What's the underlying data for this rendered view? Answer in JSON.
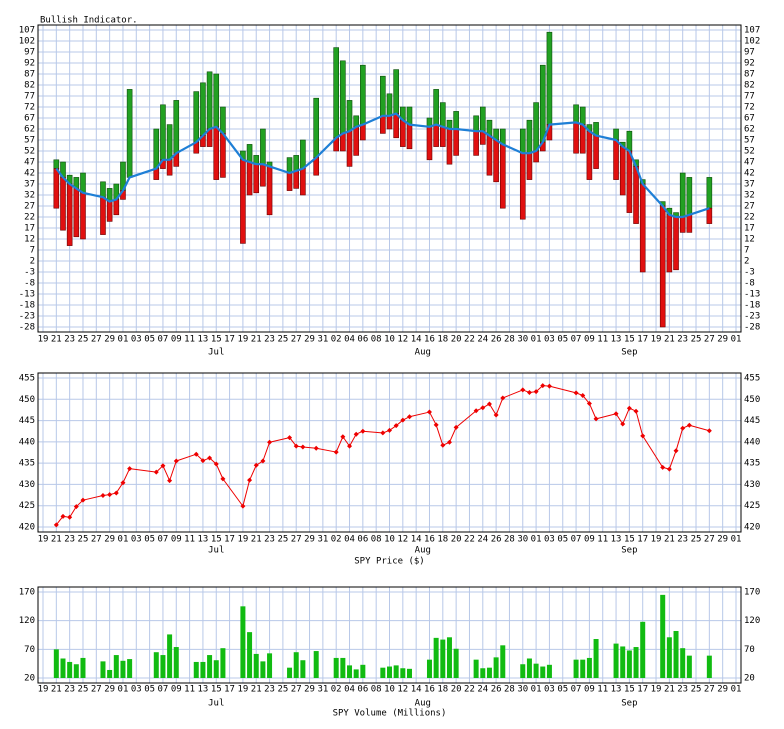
{
  "x_axis": {
    "x": [
      "06-21",
      "06-22",
      "06-23",
      "06-24",
      "06-25",
      "06-28",
      "06-29",
      "06-30",
      "07-01",
      "07-02",
      "07-06",
      "07-07",
      "07-08",
      "07-09",
      "07-12",
      "07-13",
      "07-14",
      "07-15",
      "07-16",
      "07-19",
      "07-20",
      "07-21",
      "07-22",
      "07-23",
      "07-26",
      "07-27",
      "07-28",
      "07-30",
      "08-02",
      "08-03",
      "08-04",
      "08-05",
      "08-06",
      "08-09",
      "08-10",
      "08-11",
      "08-12",
      "08-13",
      "08-16",
      "08-17",
      "08-18",
      "08-19",
      "08-20",
      "08-23",
      "08-24",
      "08-25",
      "08-26",
      "08-27",
      "08-30",
      "08-31",
      "09-01",
      "09-02",
      "09-03",
      "09-07",
      "09-08",
      "09-09",
      "09-10",
      "09-13",
      "09-14",
      "09-15",
      "09-16",
      "09-17",
      "09-20",
      "09-21",
      "09-22",
      "09-23",
      "09-24",
      "09-27"
    ],
    "xlim": [
      "06-19",
      "10-01"
    ],
    "xticks": [
      {
        "value": "06-19",
        "label": "19"
      },
      {
        "value": "06-21",
        "label": "21"
      },
      {
        "value": "06-23",
        "label": "23"
      },
      {
        "value": "06-25",
        "label": "25"
      },
      {
        "value": "06-27",
        "label": "27"
      },
      {
        "value": "06-29",
        "label": "29"
      },
      {
        "value": "07-01",
        "label": "01"
      },
      {
        "value": "07-03",
        "label": "03"
      },
      {
        "value": "07-05",
        "label": "05"
      },
      {
        "value": "07-07",
        "label": "07"
      },
      {
        "value": "07-09",
        "label": "09"
      },
      {
        "value": "07-11",
        "label": "11"
      },
      {
        "value": "07-13",
        "label": "13"
      },
      {
        "value": "07-15",
        "label": "15"
      },
      {
        "value": "07-17",
        "label": "17"
      },
      {
        "value": "07-19",
        "label": "19"
      },
      {
        "value": "07-21",
        "label": "21"
      },
      {
        "value": "07-23",
        "label": "23"
      },
      {
        "value": "07-25",
        "label": "25"
      },
      {
        "value": "07-27",
        "label": "27"
      },
      {
        "value": "07-29",
        "label": "29"
      },
      {
        "value": "07-31",
        "label": "31"
      },
      {
        "value": "08-02",
        "label": "02"
      },
      {
        "value": "08-04",
        "label": "04"
      },
      {
        "value": "08-06",
        "label": "06"
      },
      {
        "value": "08-08",
        "label": "08"
      },
      {
        "value": "08-10",
        "label": "10"
      },
      {
        "value": "08-12",
        "label": "12"
      },
      {
        "value": "08-14",
        "label": "14"
      },
      {
        "value": "08-16",
        "label": "16"
      },
      {
        "value": "08-18",
        "label": "18"
      },
      {
        "value": "08-20",
        "label": "20"
      },
      {
        "value": "08-22",
        "label": "22"
      },
      {
        "value": "08-24",
        "label": "24"
      },
      {
        "value": "08-26",
        "label": "26"
      },
      {
        "value": "08-28",
        "label": "28"
      },
      {
        "value": "08-30",
        "label": "30"
      },
      {
        "value": "09-01",
        "label": "01"
      },
      {
        "value": "09-03",
        "label": "03"
      },
      {
        "value": "09-05",
        "label": "05"
      },
      {
        "value": "09-07",
        "label": "07"
      },
      {
        "value": "09-09",
        "label": "09"
      },
      {
        "value": "09-11",
        "label": "11"
      },
      {
        "value": "09-13",
        "label": "13"
      },
      {
        "value": "09-15",
        "label": "15"
      },
      {
        "value": "09-17",
        "label": "17"
      },
      {
        "value": "09-19",
        "label": "19"
      },
      {
        "value": "09-21",
        "label": "21"
      },
      {
        "value": "09-23",
        "label": "23"
      },
      {
        "value": "09-25",
        "label": "25"
      },
      {
        "value": "09-27",
        "label": "27"
      },
      {
        "value": "09-29",
        "label": "29"
      },
      {
        "value": "10-01",
        "label": "01"
      }
    ],
    "month_labels": [
      {
        "value": "07-15",
        "label": "Jul"
      },
      {
        "value": "08-15",
        "label": "Aug"
      },
      {
        "value": "09-15",
        "label": "Sep"
      }
    ]
  },
  "chart_data": [
    {
      "type": "floating_bar_line",
      "title": "Bullish Indicator.",
      "ylim": [
        -28,
        107
      ],
      "yticks": [
        107,
        102,
        97,
        92,
        87,
        82,
        77,
        72,
        67,
        62,
        57,
        52,
        47,
        42,
        37,
        32,
        27,
        22,
        17,
        12,
        7,
        2,
        -3,
        -8,
        -13,
        -18,
        -23,
        -28
      ],
      "grid": true,
      "series": [
        {
          "color": "#22a022",
          "values": [
            48,
            47,
            41,
            40,
            42,
            38,
            35,
            37,
            47,
            80,
            62,
            73,
            64,
            75,
            79,
            83,
            88,
            87,
            72,
            52,
            55,
            50,
            62,
            47,
            49,
            50,
            57,
            76,
            99,
            93,
            75,
            68,
            91,
            86,
            78,
            89,
            72,
            72,
            67,
            80,
            74,
            66,
            70,
            68,
            72,
            66,
            62,
            62,
            62,
            66,
            74,
            91,
            106,
            73,
            72,
            64,
            65,
            62,
            56,
            61,
            48,
            39,
            29,
            26,
            24,
            42,
            40,
            40
          ]
        },
        {
          "color": "#e01010",
          "values": [
            26,
            16,
            9,
            13,
            12,
            14,
            20,
            23,
            30,
            40,
            39,
            44,
            41,
            45,
            51,
            54,
            54,
            39,
            40,
            10,
            32,
            33,
            36,
            23,
            34,
            35,
            32,
            41,
            52,
            52,
            45,
            50,
            57,
            60,
            62,
            58,
            54,
            53,
            48,
            54,
            54,
            46,
            50,
            50,
            55,
            41,
            38,
            26,
            21,
            39,
            47,
            52,
            57,
            51,
            51,
            39,
            44,
            39,
            32,
            24,
            19,
            -3,
            -28,
            -3,
            -2,
            15,
            15,
            19
          ]
        },
        {
          "color": "#1e7fd6",
          "values": [
            44,
            40,
            37,
            35,
            33,
            31,
            29,
            30,
            34,
            40,
            44,
            48,
            48,
            51,
            56,
            59,
            62,
            63,
            60,
            48,
            47,
            46,
            46,
            45,
            42,
            43,
            44,
            49,
            58,
            60,
            61,
            63,
            64,
            68,
            68,
            69,
            66,
            64,
            63,
            64,
            63,
            62,
            62,
            61,
            61,
            59,
            57,
            55,
            51,
            51,
            52,
            56,
            64,
            65,
            64,
            61,
            59,
            57,
            54,
            52,
            45,
            37,
            27,
            23,
            22,
            22,
            23,
            26
          ]
        }
      ]
    },
    {
      "type": "line",
      "xlabel": "SPY Price ($)",
      "ylim": [
        420,
        455
      ],
      "yticks": [
        420,
        425,
        430,
        435,
        440,
        445,
        450,
        455
      ],
      "grid": true,
      "color": "#ee0000",
      "values": [
        420.5,
        422.5,
        422.3,
        424.8,
        426.3,
        427.4,
        427.6,
        428,
        430.4,
        433.7,
        432.9,
        434.4,
        430.9,
        435.5,
        437.1,
        435.6,
        436.2,
        434.8,
        431.3,
        424.9,
        431,
        434.5,
        435.5,
        439.9,
        441,
        439,
        438.8,
        438.5,
        437.6,
        441.2,
        439,
        441.8,
        442.5,
        442.1,
        442.7,
        443.8,
        445.1,
        445.9,
        447,
        444,
        439.2,
        439.9,
        443.4,
        447.3,
        448,
        448.9,
        446.3,
        450.3,
        452.2,
        451.6,
        451.8,
        453.2,
        453.1,
        451.5,
        450.9,
        449,
        445.4,
        446.6,
        444.2,
        447.9,
        447.2,
        441.4,
        434,
        433.6,
        437.9,
        443.2,
        443.9,
        442.6
      ]
    },
    {
      "type": "bar",
      "xlabel": "SPY Volume (Millions)",
      "ylim": [
        20,
        170
      ],
      "yticks": [
        20,
        70,
        120,
        170
      ],
      "grid": true,
      "color": "#11bb11",
      "values": [
        70,
        54,
        48,
        44,
        55,
        49,
        34,
        60,
        50,
        53,
        65,
        60,
        96,
        74,
        48,
        48,
        60,
        51,
        72,
        145,
        100,
        62,
        49,
        63,
        38,
        65,
        51,
        67,
        55,
        55,
        42,
        35,
        43,
        38,
        40,
        42,
        37,
        36,
        52,
        90,
        87,
        91,
        71,
        52,
        37,
        38,
        56,
        77,
        44,
        54,
        45,
        40,
        43,
        52,
        52,
        55,
        88,
        80,
        75,
        68,
        74,
        118,
        165,
        91,
        102,
        72,
        59,
        59
      ]
    }
  ]
}
